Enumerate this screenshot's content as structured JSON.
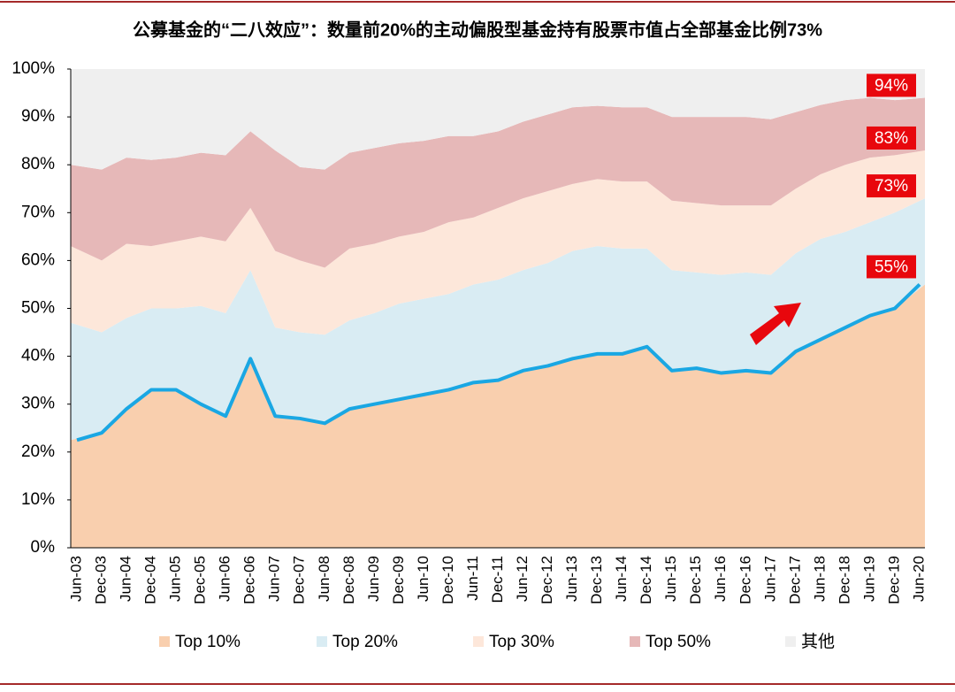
{
  "chart_data": {
    "type": "stacked-area",
    "title": "公募基金的“二八效应”：数量前20%的主动偏股型基金持有股票市值占全部基金比例73%",
    "categories": [
      "Jun-03",
      "Dec-03",
      "Jun-04",
      "Dec-04",
      "Jun-05",
      "Dec-05",
      "Jun-06",
      "Dec-06",
      "Jun-07",
      "Dec-07",
      "Jun-08",
      "Dec-08",
      "Jun-09",
      "Dec-09",
      "Jun-10",
      "Dec-10",
      "Jun-11",
      "Dec-11",
      "Jun-12",
      "Dec-12",
      "Jun-13",
      "Dec-13",
      "Jun-14",
      "Dec-14",
      "Jun-15",
      "Dec-15",
      "Jun-16",
      "Dec-16",
      "Jun-17",
      "Dec-17",
      "Jun-18",
      "Dec-18",
      "Jun-19",
      "Dec-19",
      "Jun-20"
    ],
    "series": [
      {
        "name": "Top 10%",
        "color": "#f9cfae",
        "line_color": "#1aa7e3",
        "values": [
          22.5,
          24,
          29,
          33,
          33,
          30,
          27.5,
          39.5,
          27.5,
          27,
          26,
          29,
          30,
          31,
          32,
          33,
          34.5,
          35,
          37,
          38,
          39.5,
          40.5,
          40.5,
          42,
          37,
          37.5,
          36.5,
          37,
          36.5,
          41,
          43.5,
          46,
          48.5,
          50,
          55
        ]
      },
      {
        "name": "Top 20%",
        "color": "#d9ecf3",
        "values": [
          24.5,
          21,
          19,
          17,
          17,
          20.5,
          21.5,
          18.5,
          18.5,
          18,
          18.5,
          18.5,
          19,
          20,
          20,
          20,
          20.5,
          21,
          21,
          21.5,
          22.5,
          22.5,
          22,
          20.5,
          21,
          20,
          20.5,
          20.5,
          20.5,
          20.5,
          21,
          20,
          19.5,
          20,
          18
        ]
      },
      {
        "name": "Top 30%",
        "color": "#fde7da",
        "values": [
          16,
          15,
          15.5,
          13,
          14,
          14.5,
          15,
          13,
          16,
          15,
          14,
          15,
          14.5,
          14,
          14,
          15,
          14,
          15,
          15,
          15,
          14,
          14,
          14,
          14,
          14.5,
          14.5,
          14.5,
          14,
          14.5,
          13.5,
          13.5,
          14,
          13.5,
          12,
          10
        ]
      },
      {
        "name": "Top 50%",
        "color": "#e6b8b8",
        "values": [
          17,
          19,
          18,
          18,
          17.5,
          17.5,
          18,
          16,
          21,
          19.5,
          20.5,
          20,
          20,
          19.5,
          19,
          18,
          17,
          16,
          16,
          16,
          16,
          15.3,
          15.5,
          15.5,
          17.5,
          18,
          18.5,
          18.5,
          18,
          16,
          14.5,
          13.5,
          12.5,
          11.5,
          11
        ]
      },
      {
        "name": "其他",
        "color": "#efefef",
        "values": [
          20,
          21,
          18.5,
          19,
          18.5,
          17.5,
          18,
          13,
          17,
          20.5,
          21,
          17.5,
          16.5,
          15.5,
          15,
          14,
          14,
          13,
          11,
          9.5,
          8,
          7.7,
          8,
          8,
          10,
          10,
          10,
          10,
          10.5,
          9,
          7.5,
          6.5,
          6,
          6.5,
          6
        ]
      }
    ],
    "annotations": [
      "94%",
      "83%",
      "73%",
      "55%"
    ],
    "ylim": [
      0,
      100
    ],
    "yticks": [
      {
        "value": 0,
        "label": "0%"
      },
      {
        "value": 10,
        "label": "10%"
      },
      {
        "value": 20,
        "label": "20%"
      },
      {
        "value": 30,
        "label": "30%"
      },
      {
        "value": 40,
        "label": "40%"
      },
      {
        "value": 50,
        "label": "50%"
      },
      {
        "value": 60,
        "label": "60%"
      },
      {
        "value": 70,
        "label": "70%"
      },
      {
        "value": 80,
        "label": "80%"
      },
      {
        "value": 90,
        "label": "90%"
      },
      {
        "value": 100,
        "label": "100%"
      }
    ]
  }
}
